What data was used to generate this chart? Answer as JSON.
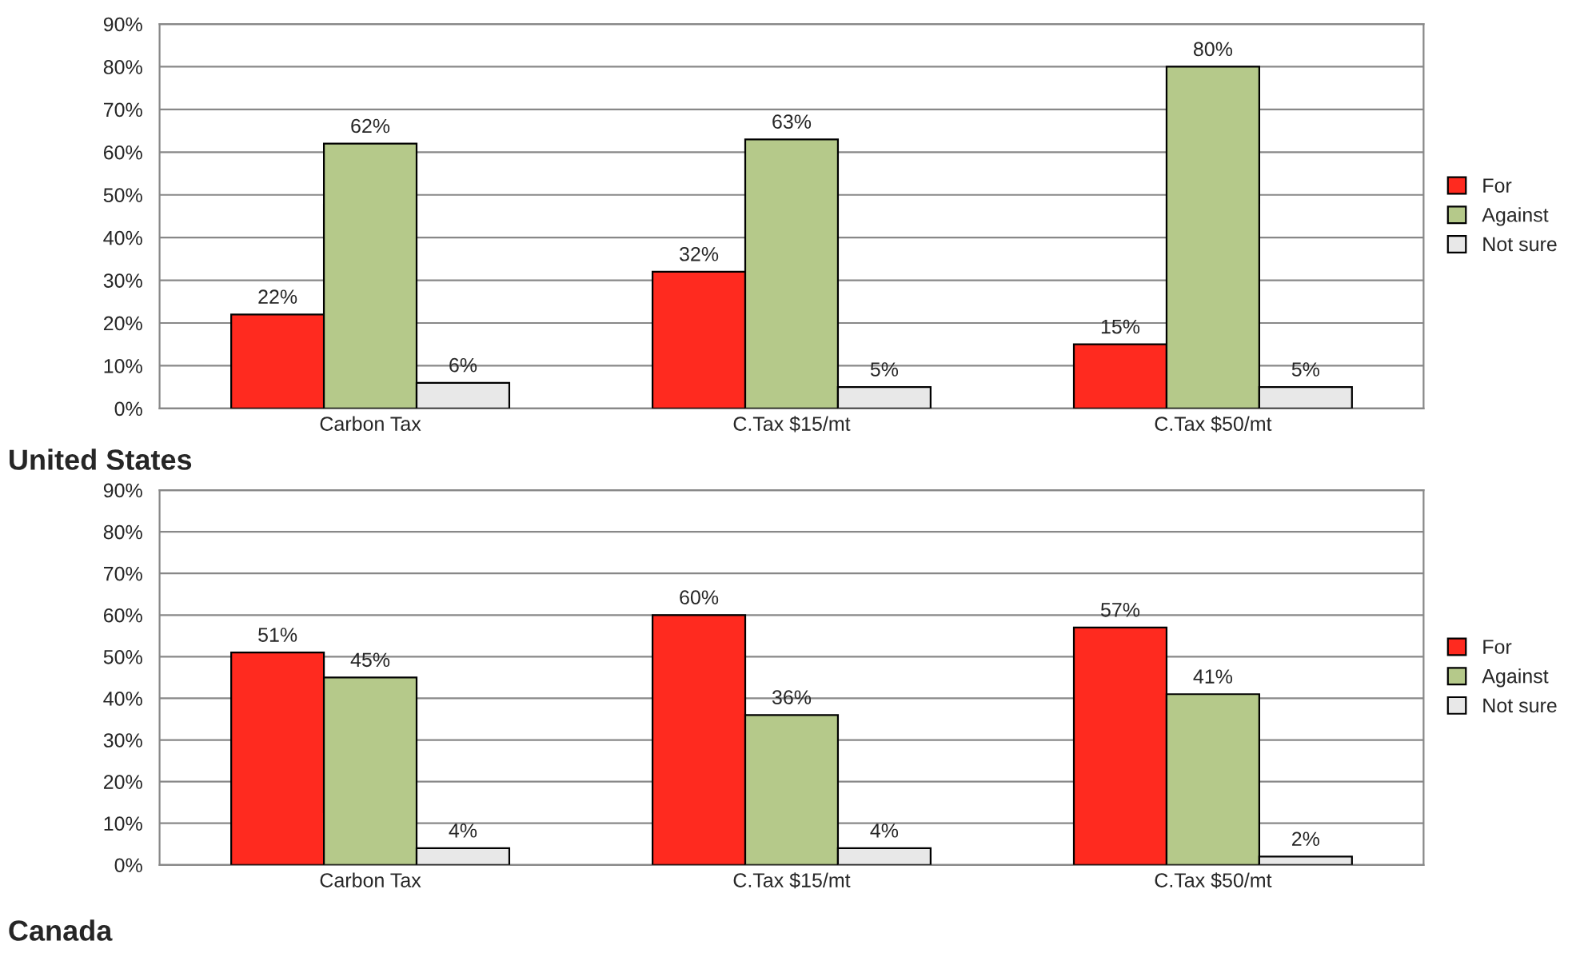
{
  "chart_data": [
    {
      "type": "bar",
      "title": "United States",
      "categories": [
        "Carbon Tax",
        "C.Tax $15/mt",
        "C.Tax $50/mt"
      ],
      "series": [
        {
          "name": "For",
          "color": "#ff2a1f",
          "values": [
            22,
            32,
            15
          ],
          "value_labels": [
            "22%",
            "32%",
            "15%"
          ]
        },
        {
          "name": "Against",
          "color": "#b5c98a",
          "values": [
            62,
            63,
            80
          ],
          "value_labels": [
            "62%",
            "63%",
            "80%"
          ]
        },
        {
          "name": "Not sure",
          "color": "#e8e8e8",
          "values": [
            6,
            5,
            5
          ],
          "value_labels": [
            "6%",
            "5%",
            "5%"
          ]
        }
      ],
      "ylim": [
        0,
        90
      ],
      "yticks": [
        {
          "value": 0,
          "label": "0%"
        },
        {
          "value": 10,
          "label": "10%"
        },
        {
          "value": 20,
          "label": "20%"
        },
        {
          "value": 30,
          "label": "30%"
        },
        {
          "value": 40,
          "label": "40%"
        },
        {
          "value": 50,
          "label": "50%"
        },
        {
          "value": 60,
          "label": "60%"
        },
        {
          "value": 70,
          "label": "70%"
        },
        {
          "value": 80,
          "label": "80%"
        },
        {
          "value": 90,
          "label": "90%"
        }
      ],
      "grid": "y",
      "legend": "right"
    },
    {
      "type": "bar",
      "title": "Canada",
      "categories": [
        "Carbon Tax",
        "C.Tax $15/mt",
        "C.Tax $50/mt"
      ],
      "series": [
        {
          "name": "For",
          "color": "#ff2a1f",
          "values": [
            51,
            60,
            57
          ],
          "value_labels": [
            "51%",
            "60%",
            "57%"
          ]
        },
        {
          "name": "Against",
          "color": "#b5c98a",
          "values": [
            45,
            36,
            41
          ],
          "value_labels": [
            "45%",
            "36%",
            "41%"
          ]
        },
        {
          "name": "Not sure",
          "color": "#e8e8e8",
          "values": [
            4,
            4,
            2
          ],
          "value_labels": [
            "4%",
            "4%",
            "2%"
          ]
        }
      ],
      "ylim": [
        0,
        90
      ],
      "yticks": [
        {
          "value": 0,
          "label": "0%"
        },
        {
          "value": 10,
          "label": "10%"
        },
        {
          "value": 20,
          "label": "20%"
        },
        {
          "value": 30,
          "label": "30%"
        },
        {
          "value": 40,
          "label": "40%"
        },
        {
          "value": 50,
          "label": "50%"
        },
        {
          "value": 60,
          "label": "60%"
        },
        {
          "value": 70,
          "label": "70%"
        },
        {
          "value": 80,
          "label": "80%"
        },
        {
          "value": 90,
          "label": "90%"
        }
      ],
      "grid": "y",
      "legend": "right"
    }
  ]
}
